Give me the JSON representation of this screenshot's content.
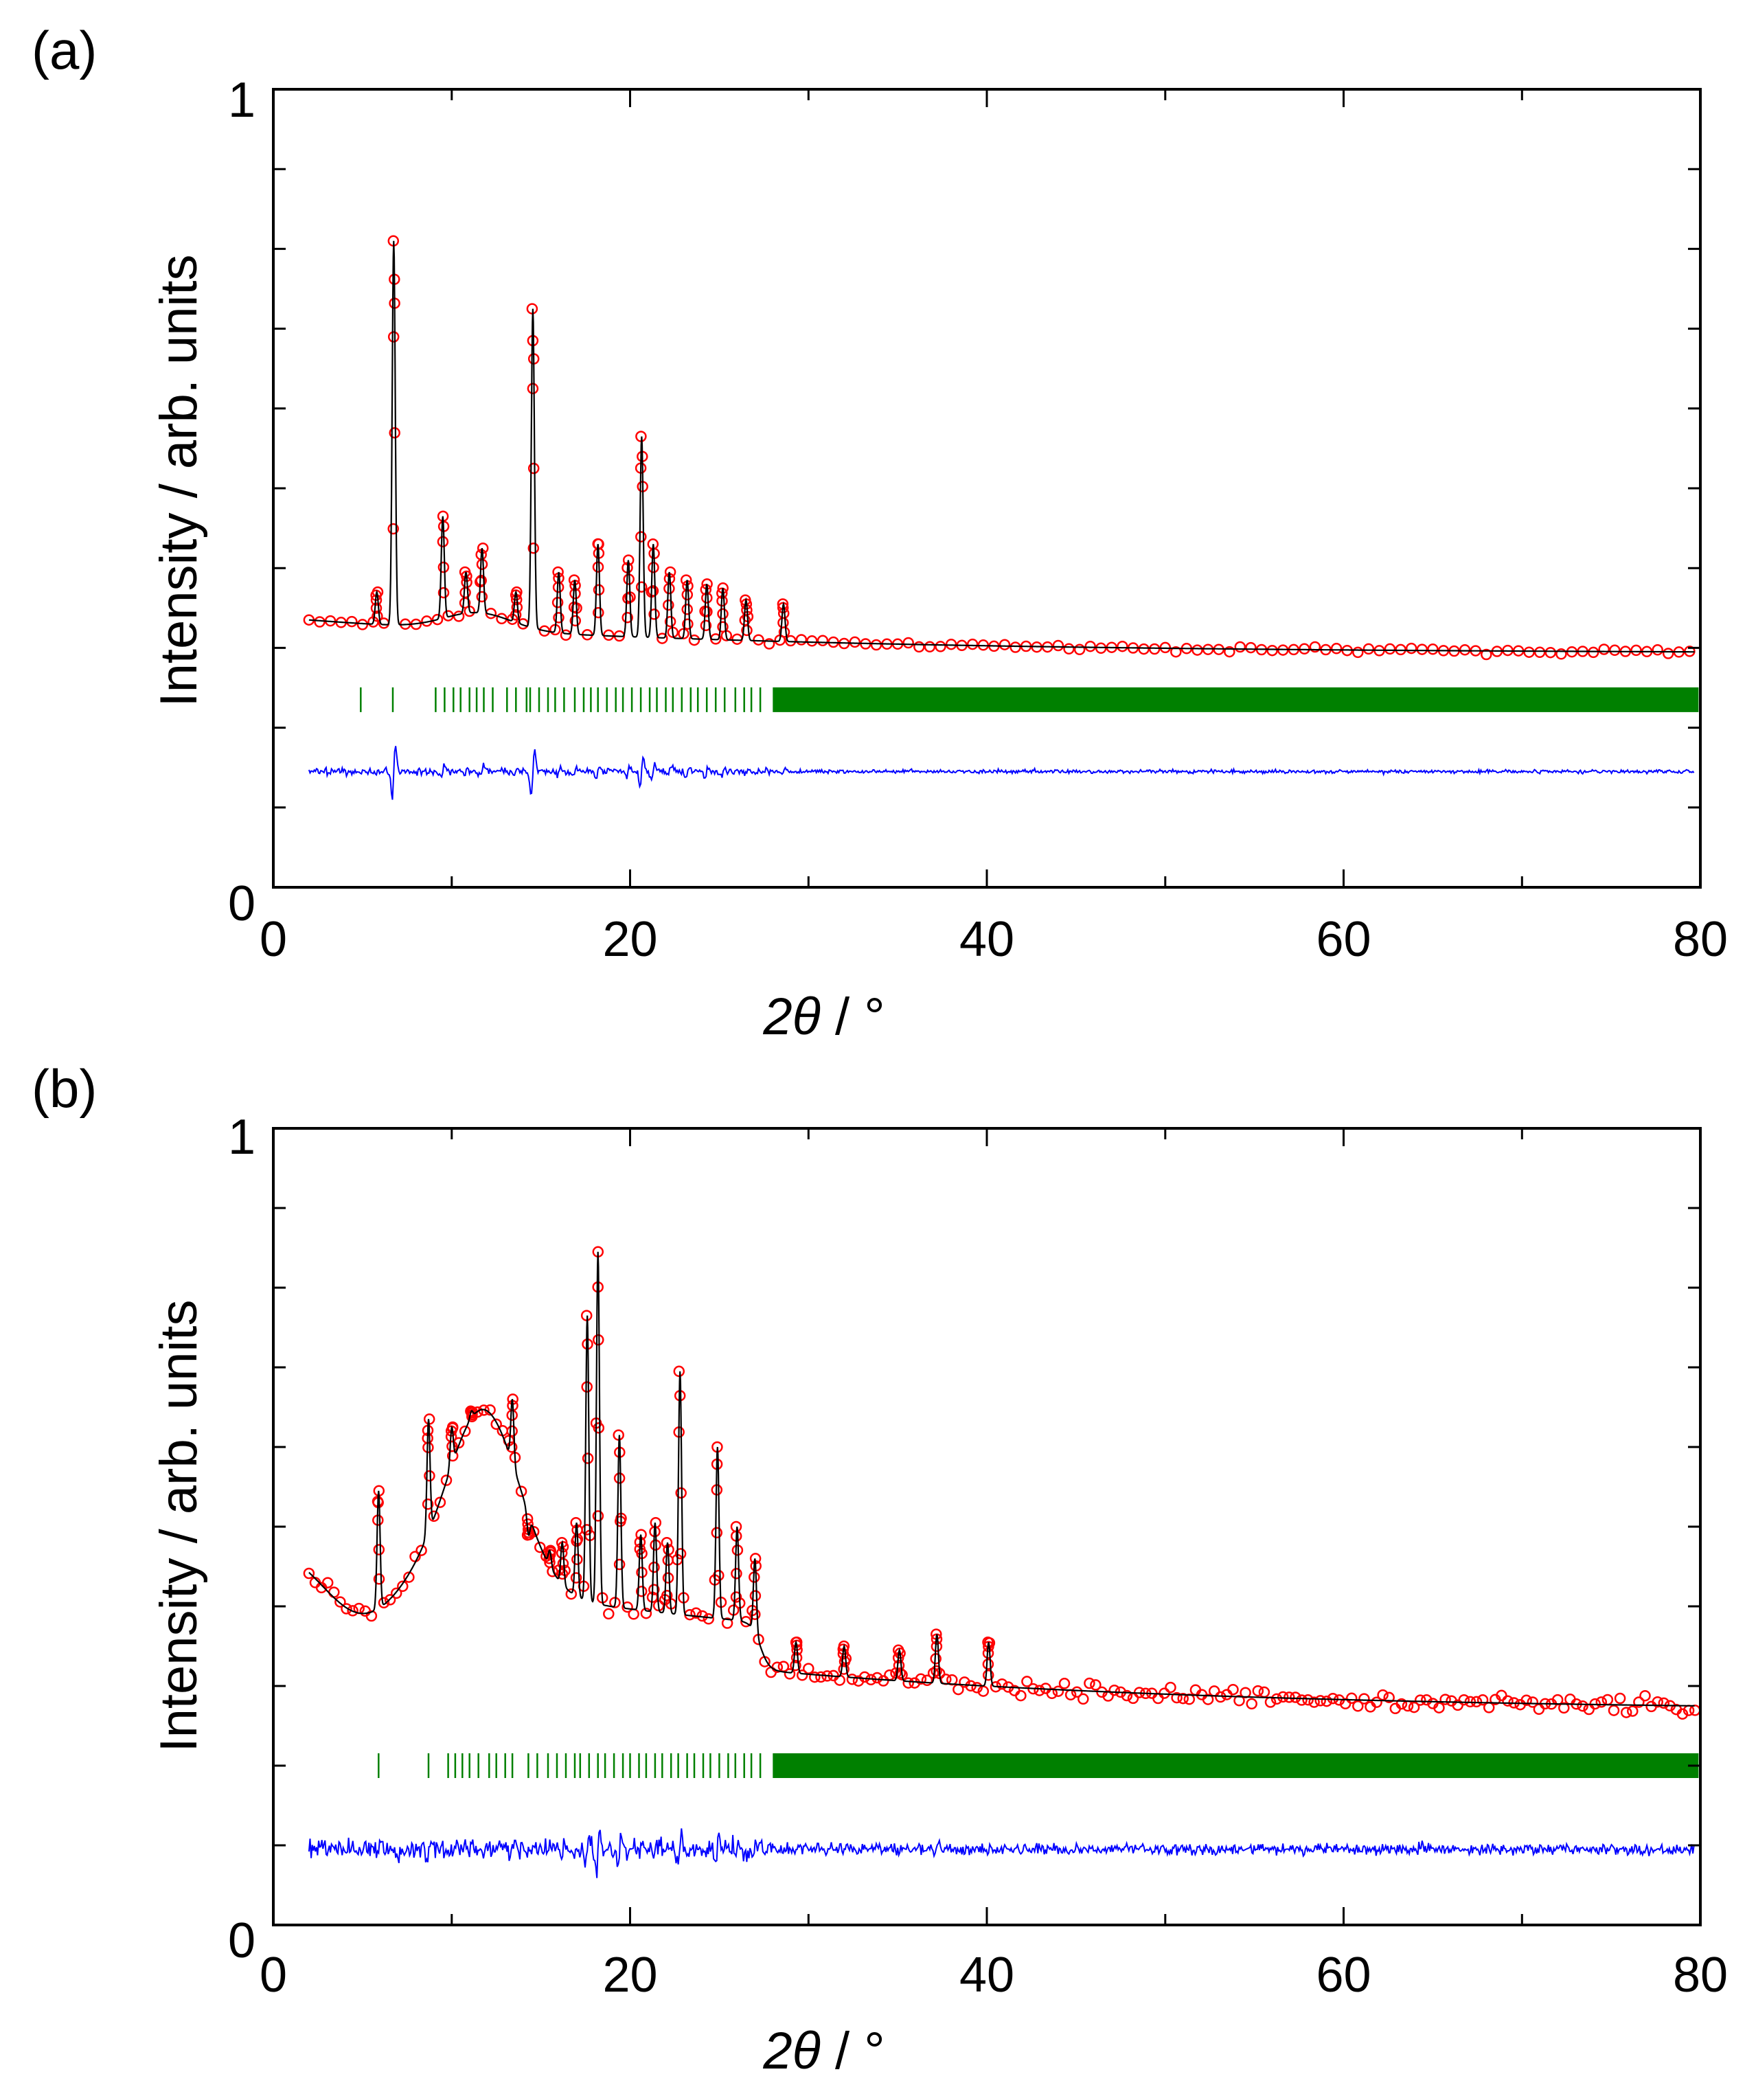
{
  "figure": {
    "panels": [
      {
        "panel_label": "(a)",
        "chart_data": {
          "type": "line",
          "title": "",
          "xlabel_var": "2θ",
          "xlabel_unit": " / °",
          "ylabel": "Intensity / arb. units",
          "xlim": [
            0,
            80
          ],
          "ylim": [
            0,
            1
          ],
          "x_ticks": [
            "0",
            "20",
            "40",
            "60",
            "80"
          ],
          "y_ticks": [
            "0",
            "1"
          ],
          "grid": false,
          "series": [
            {
              "name": "observed",
              "marker": "open-circle",
              "color": "#ff0000",
              "step": 0.6,
              "range": [
                2,
                79.7
              ]
            },
            {
              "name": "calculated",
              "line": "solid",
              "color": "#000000"
            },
            {
              "name": "Bragg positions",
              "marker": "tick",
              "color": "#008000",
              "y_level": 0.235,
              "positions": [
                4.9,
                6.7,
                9.1,
                9.6,
                10.1,
                10.5,
                11.0,
                11.4,
                11.8,
                12.3,
                13.1,
                13.6,
                14.2,
                14.4,
                14.9,
                15.4,
                15.8,
                16.3,
                16.9,
                17.4,
                17.8,
                18.2,
                18.7,
                19.2,
                19.6,
                20.1,
                20.6,
                21.1,
                21.5,
                22.0,
                22.4,
                22.9,
                23.4,
                23.8,
                24.3,
                24.8,
                25.3,
                25.9,
                26.4,
                26.8,
                27.3
              ],
              "dense_range": [
                28.0,
                79.9
              ]
            },
            {
              "name": "difference",
              "line": "solid",
              "color": "#0000ff",
              "baseline": 0.145,
              "noise": 0.004
            }
          ],
          "baseline": {
            "start": 0.335,
            "end": 0.295,
            "hump_center": 11.5,
            "hump_height": 0.022,
            "hump_width": 1.9
          },
          "peaks": [
            {
              "x": 5.8,
              "y": 0.37
            },
            {
              "x": 6.75,
              "y": 0.81
            },
            {
              "x": 9.5,
              "y": 0.465
            },
            {
              "x": 10.8,
              "y": 0.395
            },
            {
              "x": 11.7,
              "y": 0.425
            },
            {
              "x": 13.6,
              "y": 0.37
            },
            {
              "x": 14.55,
              "y": 0.725
            },
            {
              "x": 16.0,
              "y": 0.395
            },
            {
              "x": 16.9,
              "y": 0.385
            },
            {
              "x": 18.2,
              "y": 0.43
            },
            {
              "x": 19.9,
              "y": 0.41
            },
            {
              "x": 20.65,
              "y": 0.565
            },
            {
              "x": 21.3,
              "y": 0.43
            },
            {
              "x": 22.2,
              "y": 0.395
            },
            {
              "x": 23.2,
              "y": 0.385
            },
            {
              "x": 24.3,
              "y": 0.38
            },
            {
              "x": 25.2,
              "y": 0.375
            },
            {
              "x": 26.5,
              "y": 0.36
            },
            {
              "x": 28.6,
              "y": 0.355
            }
          ]
        }
      },
      {
        "panel_label": "(b)",
        "chart_data": {
          "type": "line",
          "title": "",
          "xlabel_var": "2θ",
          "xlabel_unit": " / °",
          "ylabel": "Intensity / arb. units",
          "xlim": [
            0,
            80
          ],
          "ylim": [
            0,
            1
          ],
          "x_ticks": [
            "0",
            "20",
            "40",
            "60",
            "80"
          ],
          "y_ticks": [
            "0",
            "1"
          ],
          "grid": false,
          "series": [
            {
              "name": "observed",
              "marker": "open-circle",
              "color": "#ff0000",
              "step": 0.35,
              "range": [
                2,
                79.7
              ]
            },
            {
              "name": "calculated",
              "line": "solid",
              "color": "#000000"
            },
            {
              "name": "Bragg positions",
              "marker": "tick",
              "color": "#008000",
              "y_level": 0.2,
              "positions": [
                5.9,
                8.7,
                9.8,
                10.2,
                10.6,
                11.0,
                11.5,
                12.1,
                12.5,
                13.0,
                13.4,
                14.3,
                14.8,
                15.4,
                15.9,
                16.4,
                16.9,
                17.2,
                17.7,
                18.2,
                18.6,
                19.1,
                19.6,
                20.0,
                20.5,
                20.9,
                21.4,
                21.8,
                22.3,
                22.7,
                23.2,
                23.6,
                24.1,
                24.5,
                25.0,
                25.5,
                25.9,
                26.4,
                26.8,
                27.3
              ],
              "dense_range": [
                28.0,
                79.9
              ]
            },
            {
              "name": "difference",
              "line": "solid",
              "color": "#0000ff",
              "baseline": 0.095,
              "noise": 0.012
            }
          ],
          "baseline": {
            "start": 0.405,
            "end": 0.275,
            "hump_center": 11.8,
            "hump_height": 0.225,
            "hump_width": 2.0,
            "dip": {
              "center": 4.8,
              "width": 2.0,
              "depth": 0.06
            },
            "step": {
              "x": 27.3,
              "height": 0.06
            }
          },
          "peaks": [
            {
              "x": 5.9,
              "y": 0.545
            },
            {
              "x": 8.7,
              "y": 0.635
            },
            {
              "x": 10.0,
              "y": 0.625
            },
            {
              "x": 11.1,
              "y": 0.645
            },
            {
              "x": 13.4,
              "y": 0.66
            },
            {
              "x": 14.3,
              "y": 0.49
            },
            {
              "x": 15.5,
              "y": 0.47
            },
            {
              "x": 16.2,
              "y": 0.48
            },
            {
              "x": 17.0,
              "y": 0.505
            },
            {
              "x": 17.6,
              "y": 0.765
            },
            {
              "x": 18.2,
              "y": 0.845
            },
            {
              "x": 19.4,
              "y": 0.615
            },
            {
              "x": 20.6,
              "y": 0.49
            },
            {
              "x": 21.4,
              "y": 0.505
            },
            {
              "x": 22.1,
              "y": 0.48
            },
            {
              "x": 22.8,
              "y": 0.695
            },
            {
              "x": 24.9,
              "y": 0.6
            },
            {
              "x": 26.0,
              "y": 0.5
            },
            {
              "x": 27.0,
              "y": 0.46
            },
            {
              "x": 29.3,
              "y": 0.355
            },
            {
              "x": 32.0,
              "y": 0.35
            },
            {
              "x": 35.1,
              "y": 0.345
            },
            {
              "x": 37.2,
              "y": 0.365
            },
            {
              "x": 40.1,
              "y": 0.355
            }
          ]
        }
      }
    ]
  }
}
